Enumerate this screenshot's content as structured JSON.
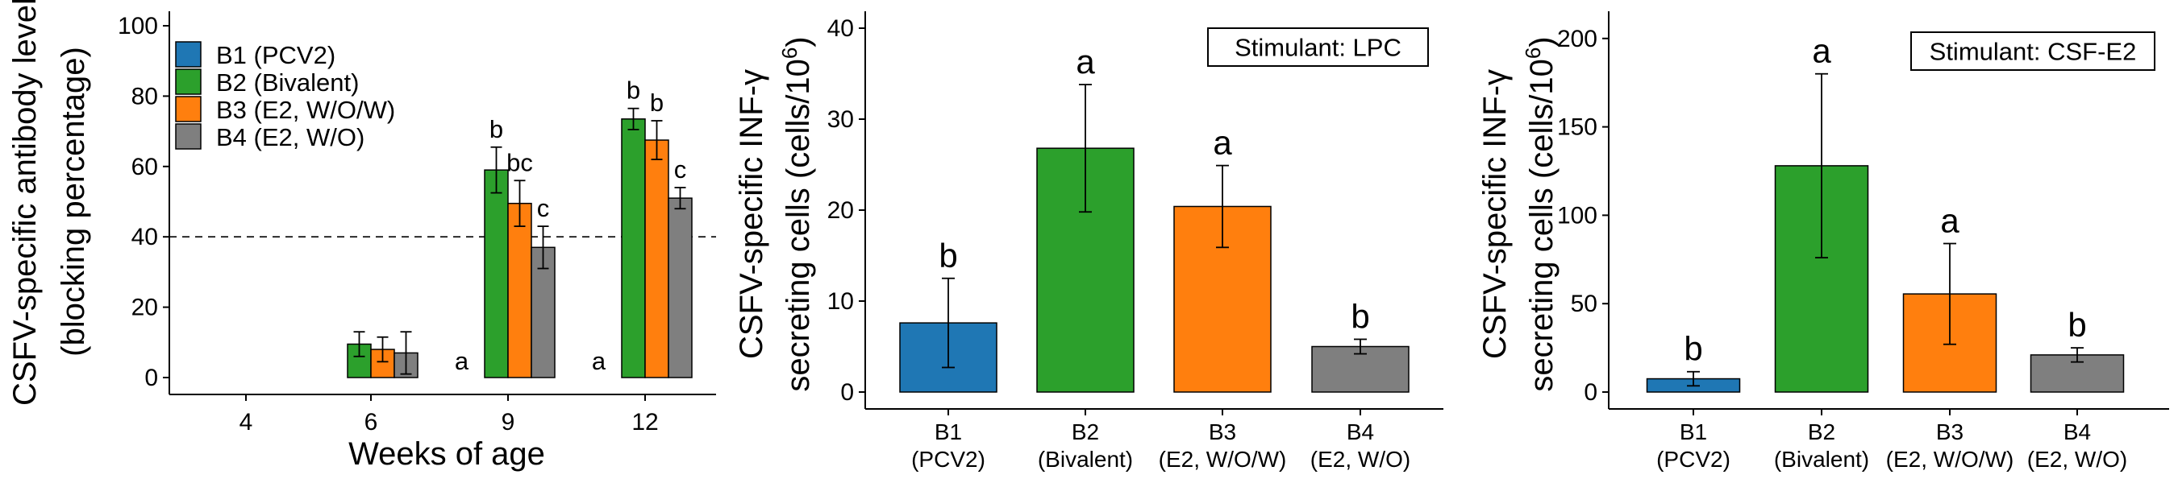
{
  "legend": {
    "items": [
      {
        "label": "B1 (PCV2)",
        "color": "#1f77b4"
      },
      {
        "label": "B2 (Bivalent)",
        "color": "#2ca02c"
      },
      {
        "label": "B3 (E2, W/O/W)",
        "color": "#ff7f0e"
      },
      {
        "label": "B4 (E2, W/O)",
        "color": "#7f7f7f"
      }
    ]
  },
  "chart_data": [
    {
      "type": "bar",
      "xlabel": "Weeks of age",
      "ylabel": [
        "CSFV-specific antibody level",
        "(blocking percentage)"
      ],
      "categories": [
        "4",
        "6",
        "9",
        "12"
      ],
      "ylim": [
        -4,
        105
      ],
      "yticks": [
        0,
        20,
        40,
        60,
        80,
        100
      ],
      "reference_line": {
        "y": 40,
        "style": "dashed"
      },
      "series": [
        {
          "name": "B1 (PCV2)",
          "color": "#1f77b4",
          "values": [
            0,
            0,
            0,
            0
          ],
          "errors": [
            0,
            0,
            0,
            0
          ],
          "letters": [
            "",
            "",
            "a",
            "a"
          ]
        },
        {
          "name": "B2 (Bivalent)",
          "color": "#2ca02c",
          "values": [
            0,
            9.5,
            59,
            73.5
          ],
          "errors": [
            0,
            3.5,
            6.5,
            3
          ],
          "letters": [
            "",
            "",
            "b",
            "b"
          ]
        },
        {
          "name": "B3 (E2, W/O/W)",
          "color": "#ff7f0e",
          "values": [
            0,
            8,
            49.5,
            67.5
          ],
          "errors": [
            0,
            3.5,
            6.5,
            5.5
          ],
          "letters": [
            "",
            "",
            "bc",
            "b"
          ]
        },
        {
          "name": "B4 (E2, W/O)",
          "color": "#7f7f7f",
          "values": [
            0,
            7,
            37,
            51
          ],
          "errors": [
            0,
            6,
            6,
            3
          ],
          "letters": [
            "",
            "",
            "c",
            "c"
          ]
        }
      ]
    },
    {
      "type": "bar",
      "annotation": "Stimulant: LPC",
      "ylabel": [
        "CSFV-specific INF-γ",
        "secreting cells (cells/10",
        "6",
        ")"
      ],
      "categories": [
        [
          "B1",
          "(PCV2)"
        ],
        [
          "B2",
          "(Bivalent)"
        ],
        [
          "B3",
          "(E2, W/O/W)"
        ],
        [
          "B4",
          "(E2, W/O)"
        ]
      ],
      "ylim": [
        -2,
        42
      ],
      "yticks": [
        0,
        10,
        20,
        30,
        40
      ],
      "values": [
        7.6,
        26.8,
        20.4,
        5.0
      ],
      "errors": [
        4.9,
        7.0,
        4.5,
        0.8
      ],
      "colors": [
        "#1f77b4",
        "#2ca02c",
        "#ff7f0e",
        "#7f7f7f"
      ],
      "letters": [
        "b",
        "a",
        "a",
        "b"
      ]
    },
    {
      "type": "bar",
      "annotation": "Stimulant: CSF-E2",
      "ylabel": [
        "CSFV-specific INF-γ",
        "secreting cells (cells/10",
        "6",
        ")"
      ],
      "categories": [
        [
          "B1",
          "(PCV2)"
        ],
        [
          "B2",
          "(Bivalent)"
        ],
        [
          "B3",
          "(E2, W/O/W)"
        ],
        [
          "B4",
          "(E2, W/O)"
        ]
      ],
      "ylim": [
        -10,
        215
      ],
      "yticks": [
        0,
        50,
        100,
        150,
        200
      ],
      "values": [
        7.5,
        128,
        55.5,
        21
      ],
      "errors": [
        4,
        52,
        28.5,
        4
      ],
      "colors": [
        "#1f77b4",
        "#2ca02c",
        "#ff7f0e",
        "#7f7f7f"
      ],
      "letters": [
        "b",
        "a",
        "a",
        "b"
      ]
    }
  ]
}
